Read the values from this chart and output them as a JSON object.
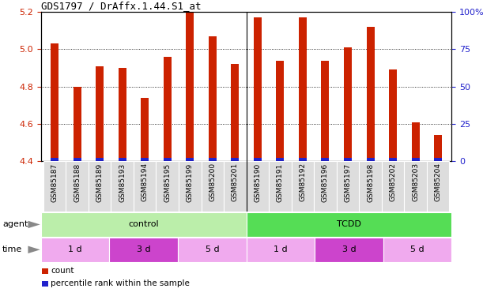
{
  "title": "GDS1797 / DrAffx.1.44.S1_at",
  "samples": [
    "GSM85187",
    "GSM85188",
    "GSM85189",
    "GSM85193",
    "GSM85194",
    "GSM85195",
    "GSM85199",
    "GSM85200",
    "GSM85201",
    "GSM85190",
    "GSM85191",
    "GSM85192",
    "GSM85196",
    "GSM85197",
    "GSM85198",
    "GSM85202",
    "GSM85203",
    "GSM85204"
  ],
  "counts": [
    5.03,
    4.8,
    4.91,
    4.9,
    4.74,
    4.96,
    5.2,
    5.07,
    4.92,
    5.17,
    4.94,
    5.17,
    4.94,
    5.01,
    5.12,
    4.89,
    4.61,
    4.54
  ],
  "ylim_left": [
    4.4,
    5.2
  ],
  "yticks_left": [
    4.4,
    4.6,
    4.8,
    5.0,
    5.2
  ],
  "ylim_right": [
    0,
    100
  ],
  "yticks_right": [
    0,
    25,
    50,
    75,
    100
  ],
  "ytick_labels_right": [
    "0",
    "25",
    "50",
    "75",
    "100%"
  ],
  "bar_color_red": "#cc2200",
  "bar_color_blue": "#2222cc",
  "agent_groups": [
    {
      "label": "control",
      "start": 0,
      "end": 9,
      "color": "#bbeeaa"
    },
    {
      "label": "TCDD",
      "start": 9,
      "end": 18,
      "color": "#55dd55"
    }
  ],
  "time_groups": [
    {
      "label": "1 d",
      "start": 0,
      "end": 3,
      "color": "#f0aaee"
    },
    {
      "label": "3 d",
      "start": 3,
      "end": 6,
      "color": "#cc44cc"
    },
    {
      "label": "5 d",
      "start": 6,
      "end": 9,
      "color": "#f0aaee"
    },
    {
      "label": "1 d",
      "start": 9,
      "end": 12,
      "color": "#f0aaee"
    },
    {
      "label": "3 d",
      "start": 12,
      "end": 15,
      "color": "#cc44cc"
    },
    {
      "label": "5 d",
      "start": 15,
      "end": 18,
      "color": "#f0aaee"
    }
  ],
  "legend_items": [
    {
      "label": "count",
      "color": "#cc2200"
    },
    {
      "label": "percentile rank within the sample",
      "color": "#2222cc"
    }
  ],
  "left_tick_color": "#cc2200",
  "right_tick_color": "#2222cc",
  "background_color": "#ffffff",
  "grid_color": "#888888",
  "tick_area_bg": "#dddddd",
  "arrow_color": "#888888"
}
